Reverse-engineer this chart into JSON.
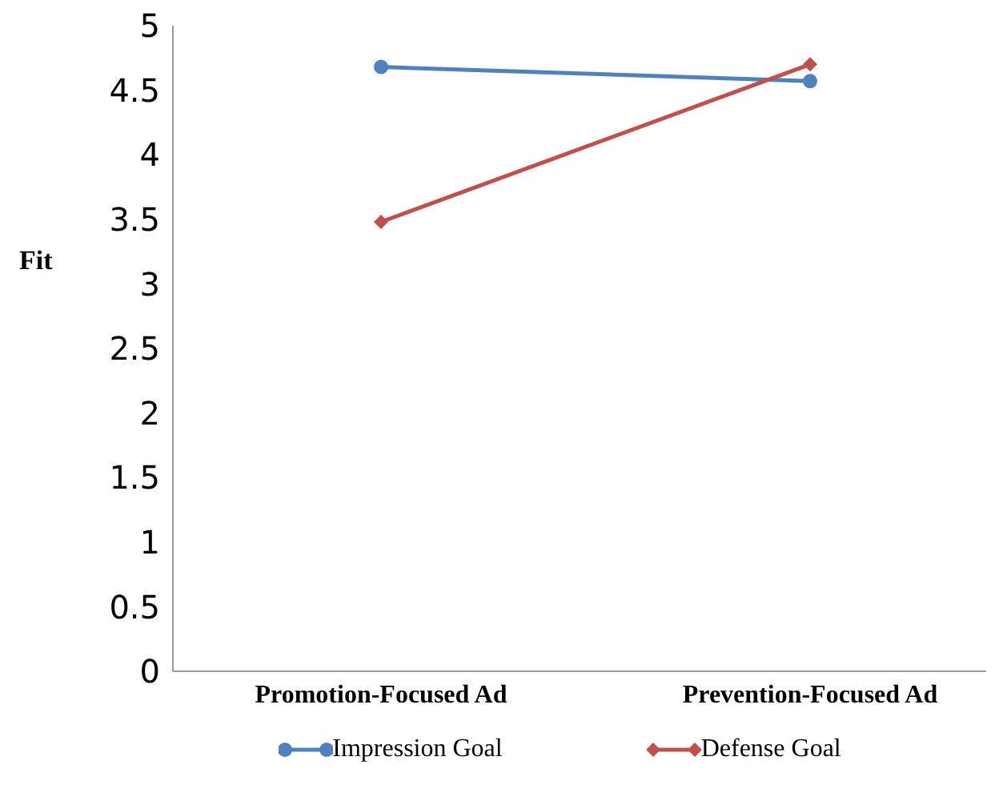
{
  "chart_data": {
    "type": "line",
    "ylabel": "Fit",
    "categories": [
      "Promotion-Focused Ad",
      "Prevention-Focused Ad"
    ],
    "series": [
      {
        "name": "Impression Goal",
        "color": "#4f81bd",
        "marker": "circle",
        "values": [
          4.68,
          4.57
        ]
      },
      {
        "name": "Defense Goal",
        "color": "#c0504d",
        "marker": "diamond",
        "values": [
          3.48,
          4.7
        ]
      }
    ],
    "ylim": [
      0,
      5
    ],
    "yticks": [
      0,
      0.5,
      1,
      1.5,
      2,
      2.5,
      3,
      3.5,
      4,
      4.5,
      5
    ],
    "grid": false,
    "legend": "bottom"
  }
}
